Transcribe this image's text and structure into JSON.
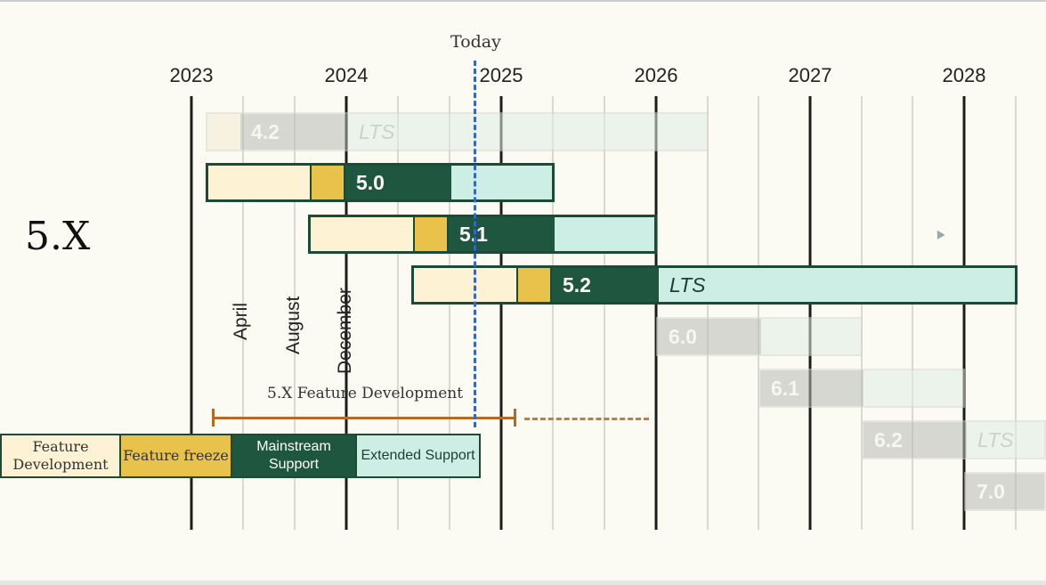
{
  "today_label": "Today",
  "series_label": "5.X",
  "years": [
    "2023",
    "2024",
    "2025",
    "2026",
    "2027",
    "2028"
  ],
  "months": [
    "April",
    "August",
    "December"
  ],
  "releases": [
    {
      "id": "4.2",
      "label": "4.2",
      "lts": "LTS",
      "faded": true
    },
    {
      "id": "5.0",
      "label": "5.0",
      "lts": "",
      "faded": false
    },
    {
      "id": "5.1",
      "label": "5.1",
      "lts": "",
      "faded": false
    },
    {
      "id": "5.2",
      "label": "5.2",
      "lts": "LTS",
      "faded": false
    },
    {
      "id": "6.0",
      "label": "6.0",
      "lts": "",
      "faded": true
    },
    {
      "id": "6.1",
      "label": "6.1",
      "lts": "",
      "faded": true
    },
    {
      "id": "6.2",
      "label": "6.2",
      "lts": "LTS",
      "faded": true
    },
    {
      "id": "7.0",
      "label": "7.0",
      "lts": "",
      "faded": true
    }
  ],
  "feature_development_label": "5.X Feature Development",
  "legend": {
    "feature_development": "Feature Development",
    "feature_freeze": "Feature freeze",
    "mainstream_support": "Mainstream Support",
    "extended_support": "Extended Support"
  },
  "colors": {
    "feature_development": "#fdf2d3",
    "feature_freeze": "#e8c24a",
    "mainstream_support": "#1e5640",
    "extended_support": "#cdeee4",
    "today_line": "#3566c6",
    "bracket": "#b46a24"
  }
}
